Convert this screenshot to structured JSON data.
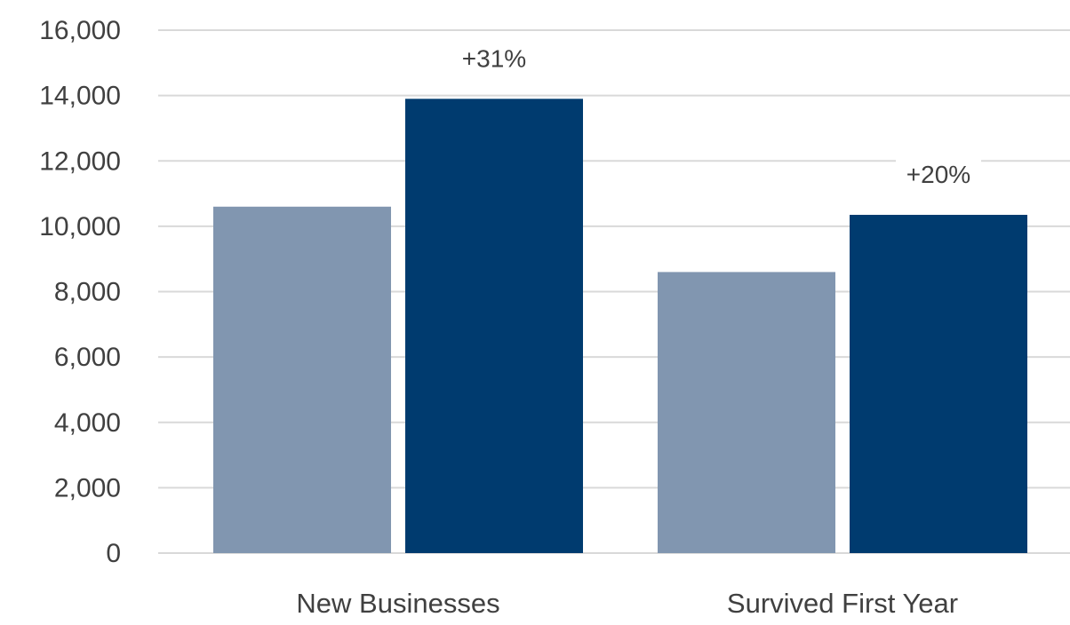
{
  "chart_data": {
    "type": "bar",
    "categories": [
      "New Businesses",
      "Survived First Year"
    ],
    "series": [
      {
        "values": [
          10600,
          8600
        ],
        "color": "#8196b0"
      },
      {
        "values": [
          13900,
          10350
        ],
        "color": "#003b6f"
      }
    ],
    "data_labels": [
      {
        "category": "New Businesses",
        "series_index": 1,
        "text": "+31%"
      },
      {
        "category": "Survived First Year",
        "series_index": 1,
        "text": "+20%"
      }
    ],
    "y_ticks": [
      "0",
      "2,000",
      "4,000",
      "6,000",
      "8,000",
      "10,000",
      "12,000",
      "14,000",
      "16,000"
    ],
    "ylim": [
      0,
      16000
    ],
    "grid": true,
    "legend": "none",
    "title": "",
    "xlabel": "",
    "ylabel": ""
  }
}
